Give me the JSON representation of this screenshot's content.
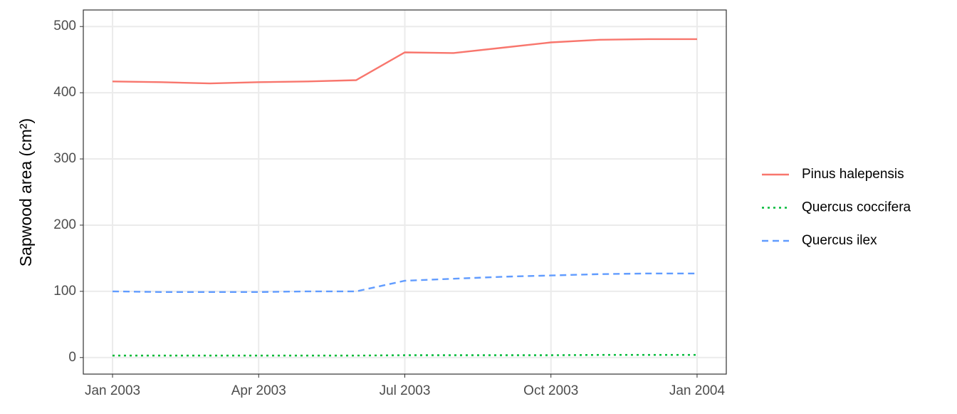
{
  "chart_data": {
    "type": "line",
    "y_label": "Sapwood area  (cm²)",
    "x": [
      "2003-01",
      "2003-02",
      "2003-03",
      "2003-04",
      "2003-05",
      "2003-06",
      "2003-07",
      "2003-08",
      "2003-09",
      "2003-10",
      "2003-11",
      "2003-12",
      "2004-01"
    ],
    "series": [
      {
        "name": "Pinus halepensis",
        "color": "#f8766d",
        "dash": "solid",
        "values": [
          417,
          416,
          414,
          416,
          417,
          419,
          461,
          460,
          468,
          476,
          480,
          481,
          481
        ]
      },
      {
        "name": "Quercus coccifera",
        "color": "#00ba38",
        "dash": "dotted",
        "values": [
          3,
          3,
          3,
          3,
          3,
          3,
          3.5,
          3.5,
          3.5,
          3.5,
          4,
          4,
          4
        ]
      },
      {
        "name": "Quercus ilex",
        "color": "#619cff",
        "dash": "dashed",
        "values": [
          100,
          99,
          99,
          99,
          100,
          100,
          116,
          119,
          122,
          124,
          126,
          127,
          127
        ]
      }
    ],
    "xlim": [
      "2003-01",
      "2004-01"
    ],
    "xticks": [
      {
        "value": "2003-01",
        "label": "Jan 2003"
      },
      {
        "value": "2003-04",
        "label": "Apr 2003"
      },
      {
        "value": "2003-07",
        "label": "Jul 2003"
      },
      {
        "value": "2003-10",
        "label": "Oct 2003"
      },
      {
        "value": "2004-01",
        "label": "Jan 2004"
      }
    ],
    "ylim": [
      0,
      500
    ],
    "yticks": [
      0,
      100,
      200,
      300,
      400,
      500
    ],
    "grid": true,
    "legend": "right"
  }
}
